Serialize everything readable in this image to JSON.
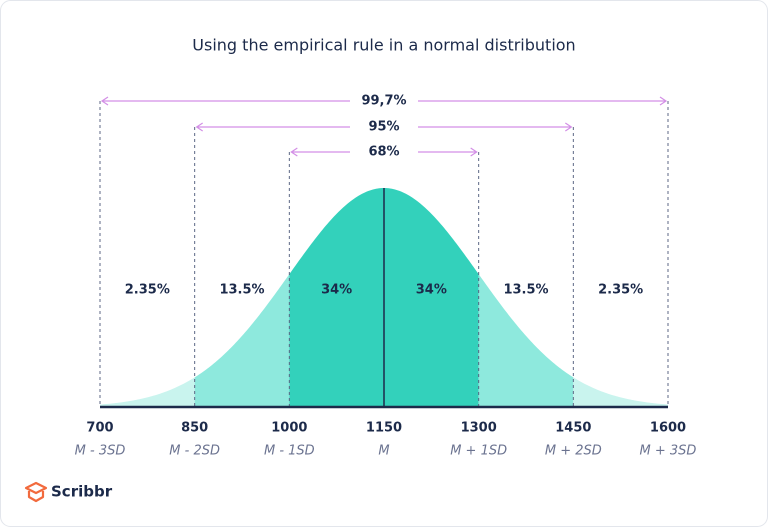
{
  "chart_data": {
    "type": "normal",
    "title": "Using the empirical rule in a normal distribution",
    "xlim": [
      700,
      1600
    ],
    "xticks": [
      700,
      850,
      1000,
      1150,
      1300,
      1450,
      1600
    ],
    "x_sublabels": [
      "M - 3SD",
      "M - 2SD",
      "M - 1SD",
      "M",
      "M + 1SD",
      "M + 2SD",
      "M + 3SD"
    ],
    "regions": {
      "values": [
        2.35,
        13.5,
        34,
        34,
        13.5,
        2.35
      ],
      "value_labels": [
        "2.35%",
        "13.5%",
        "34%",
        "34%",
        "13.5%",
        "2.35%"
      ],
      "colors": [
        "#c9f4ee",
        "#8ee9dd",
        "#33d1bb",
        "#33d1bb",
        "#8ee9dd",
        "#c9f4ee"
      ]
    },
    "intervals": {
      "values": [
        68,
        95,
        99.7
      ],
      "value_labels": [
        "68%",
        "95%",
        "99,7%"
      ],
      "color": "#d38fe6"
    }
  },
  "logo": {
    "text": "Scribbr"
  }
}
